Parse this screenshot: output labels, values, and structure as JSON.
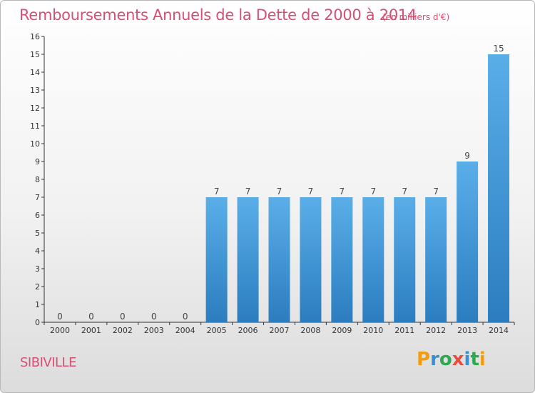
{
  "header": {
    "title": "Remboursements Annuels de la Dette de 2000 à 2014",
    "subtitle": "(en milliers d'€)"
  },
  "footer": {
    "commune": "SIBIVILLE",
    "logo_letters": [
      "P",
      "r",
      "o",
      "x",
      "i",
      "t",
      "i"
    ],
    "logo_colors": [
      "#f39c12",
      "#3a8fd0",
      "#2fa84f",
      "#e74c3c",
      "#3a8fd0",
      "#2fa84f",
      "#f39c12"
    ]
  },
  "colors": {
    "title": "#d64f74",
    "bar_top": "#5aaee8",
    "bar_bottom": "#2b7dbf",
    "axis": "#333333"
  },
  "chart_data": {
    "type": "bar",
    "categories": [
      "2000",
      "2001",
      "2002",
      "2003",
      "2004",
      "2005",
      "2006",
      "2007",
      "2008",
      "2009",
      "2010",
      "2011",
      "2012",
      "2013",
      "2014"
    ],
    "values": [
      0,
      0,
      0,
      0,
      0,
      7,
      7,
      7,
      7,
      7,
      7,
      7,
      7,
      9,
      15
    ],
    "yticks": [
      0,
      1,
      2,
      3,
      4,
      5,
      6,
      7,
      8,
      9,
      10,
      11,
      12,
      13,
      14,
      15,
      16
    ],
    "ylim": [
      0,
      16
    ],
    "grid": false
  }
}
